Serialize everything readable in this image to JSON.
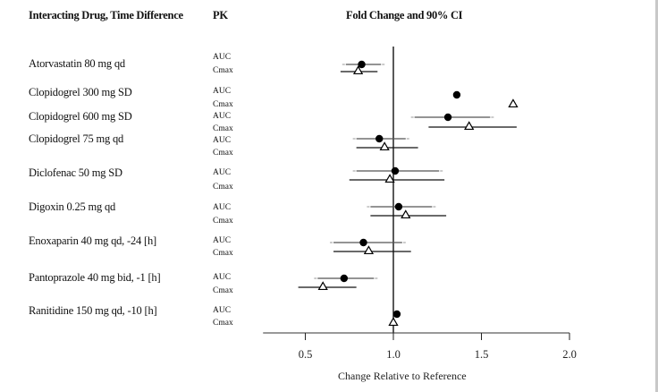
{
  "chart_data": {
    "type": "forest",
    "title": "Fold Change and 90% CI",
    "columns": {
      "drug_header": "Interacting Drug, Time Difference",
      "pk_header": "PK",
      "plot_header": "Fold Change and 90% CI"
    },
    "xlabel": "Change Relative to Reference",
    "xlim": [
      0.25,
      2.0
    ],
    "xticks": [
      0.5,
      1.0,
      1.5,
      2.0
    ],
    "xtick_labels": [
      "0.5",
      "1.0",
      "1.5",
      "2.0"
    ],
    "reference_line": 1.0,
    "markers": {
      "AUC": "filled-circle",
      "Cmax": "open-triangle"
    },
    "rows": [
      {
        "drug": "Atorvastatin 80 mg qd",
        "AUC": {
          "label": "AUC",
          "value": 0.82,
          "ci": [
            0.73,
            0.93
          ]
        },
        "Cmax": {
          "label": "Cmax",
          "value": 0.8,
          "ci": [
            0.7,
            0.91
          ]
        }
      },
      {
        "drug": "Clopidogrel 300 mg SD",
        "AUC": {
          "label": "AUC",
          "value": 1.36,
          "ci": null
        },
        "Cmax": {
          "label": "Cmax",
          "value": 1.68,
          "ci": null
        }
      },
      {
        "drug": "Clopidogrel 600 mg SD",
        "AUC": {
          "label": "AUC",
          "value": 1.31,
          "ci": [
            1.12,
            1.55
          ]
        },
        "Cmax": {
          "label": "Cmax",
          "value": 1.43,
          "ci": [
            1.2,
            1.7
          ]
        }
      },
      {
        "drug": "Clopidogrel 75 mg qd",
        "AUC": {
          "label": "AUC",
          "value": 0.92,
          "ci": [
            0.79,
            1.07
          ]
        },
        "Cmax": {
          "label": "Cmax",
          "value": 0.95,
          "ci": [
            0.79,
            1.14
          ]
        }
      },
      {
        "drug": "Diclofenac 50 mg SD",
        "AUC": {
          "label": "AUC",
          "value": 1.01,
          "ci": [
            0.79,
            1.26
          ]
        },
        "Cmax": {
          "label": "Cmax",
          "value": 0.98,
          "ci": [
            0.75,
            1.29
          ]
        }
      },
      {
        "drug": "Digoxin 0.25  mg qd",
        "AUC": {
          "label": "AUC",
          "value": 1.03,
          "ci": [
            0.87,
            1.22
          ]
        },
        "Cmax": {
          "label": "Cmax",
          "value": 1.07,
          "ci": [
            0.87,
            1.3
          ]
        }
      },
      {
        "drug": "Enoxaparin 40 mg qd, -24 [h]",
        "AUC": {
          "label": "AUC",
          "value": 0.83,
          "ci": [
            0.66,
            1.05
          ]
        },
        "Cmax": {
          "label": "Cmax",
          "value": 0.86,
          "ci": [
            0.66,
            1.1
          ]
        }
      },
      {
        "drug": "Pantoprazole 40 mg bid, -1 [h]",
        "AUC": {
          "label": "AUC",
          "value": 0.72,
          "ci": [
            0.57,
            0.89
          ]
        },
        "Cmax": {
          "label": "Cmax",
          "value": 0.6,
          "ci": [
            0.46,
            0.79
          ]
        }
      },
      {
        "drug": "Ranitidine 150 mg qd, -10 [h]",
        "AUC": {
          "label": "AUC",
          "value": 1.02,
          "ci": null
        },
        "Cmax": {
          "label": "Cmax",
          "value": 1.0,
          "ci": null
        }
      }
    ],
    "colors": {
      "auc_line": "#555555",
      "cmax_line": "#111111",
      "marker": "#000000",
      "reference": "#000000"
    },
    "grid": false
  }
}
